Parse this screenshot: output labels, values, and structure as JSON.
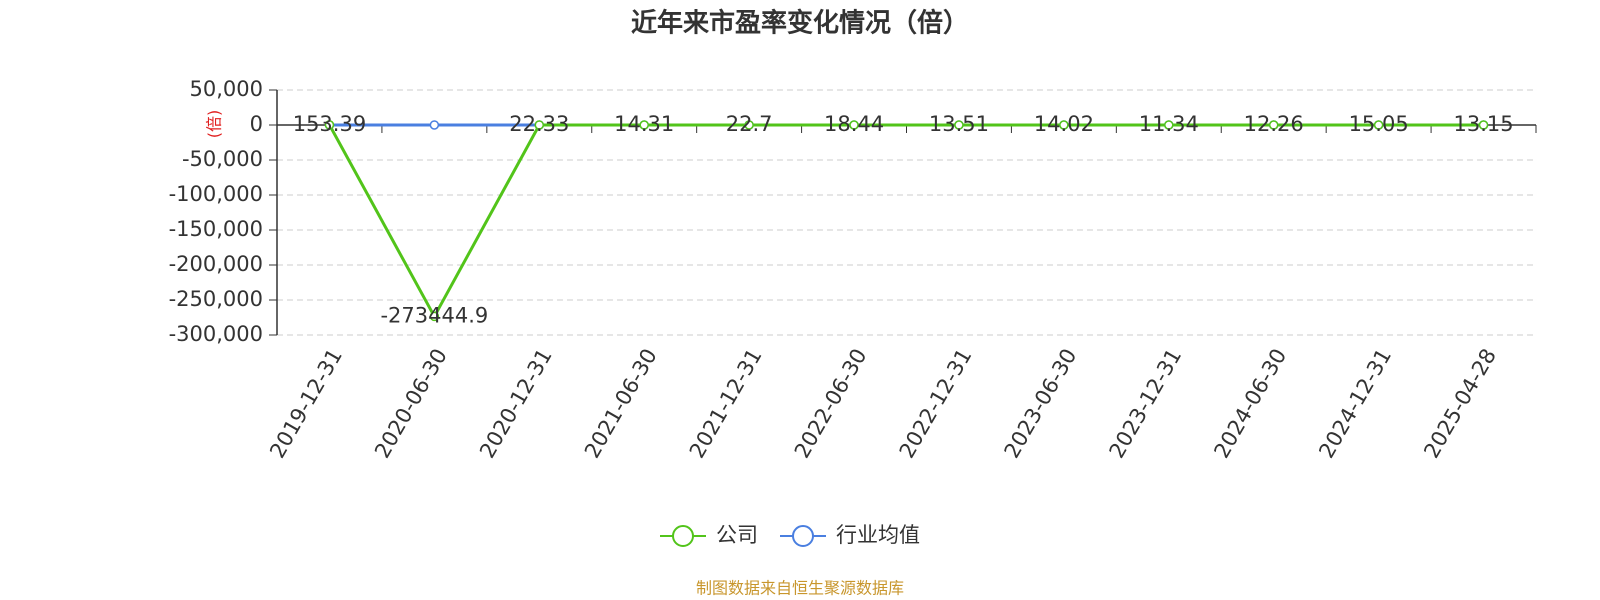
{
  "chart_data": {
    "type": "line",
    "title": "近年来市盈率变化情况（倍）",
    "y_label": "(倍)",
    "categories": [
      "2019-12-31",
      "2020-06-30",
      "2020-12-31",
      "2021-06-30",
      "2021-12-31",
      "2022-06-30",
      "2022-12-31",
      "2023-06-30",
      "2023-12-31",
      "2024-06-30",
      "2024-12-31",
      "2025-04-28"
    ],
    "series": [
      {
        "name": "公司",
        "color": "#52c41a",
        "values": [
          153.39,
          -273444.9,
          22.33,
          14.31,
          22.7,
          18.44,
          13.51,
          14.02,
          11.34,
          12.26,
          15.05,
          13.15
        ]
      },
      {
        "name": "行业均值",
        "color": "#4a7fe0",
        "values": [
          30,
          30,
          30,
          30,
          30,
          30,
          30,
          30,
          30,
          30,
          30,
          30
        ]
      }
    ],
    "ylim": [
      -300000,
      50000
    ],
    "yticks": [
      {
        "value": -300000,
        "label": "-300,000"
      },
      {
        "value": -250000,
        "label": "-250,000"
      },
      {
        "value": -200000,
        "label": "-200,000"
      },
      {
        "value": -150000,
        "label": "-150,000"
      },
      {
        "value": -100000,
        "label": "-100,000"
      },
      {
        "value": -50000,
        "label": "-50,000"
      },
      0,
      {
        "value": 50000,
        "label": "50,000"
      }
    ],
    "grid": true,
    "source": "制图数据来自恒生聚源数据库"
  }
}
